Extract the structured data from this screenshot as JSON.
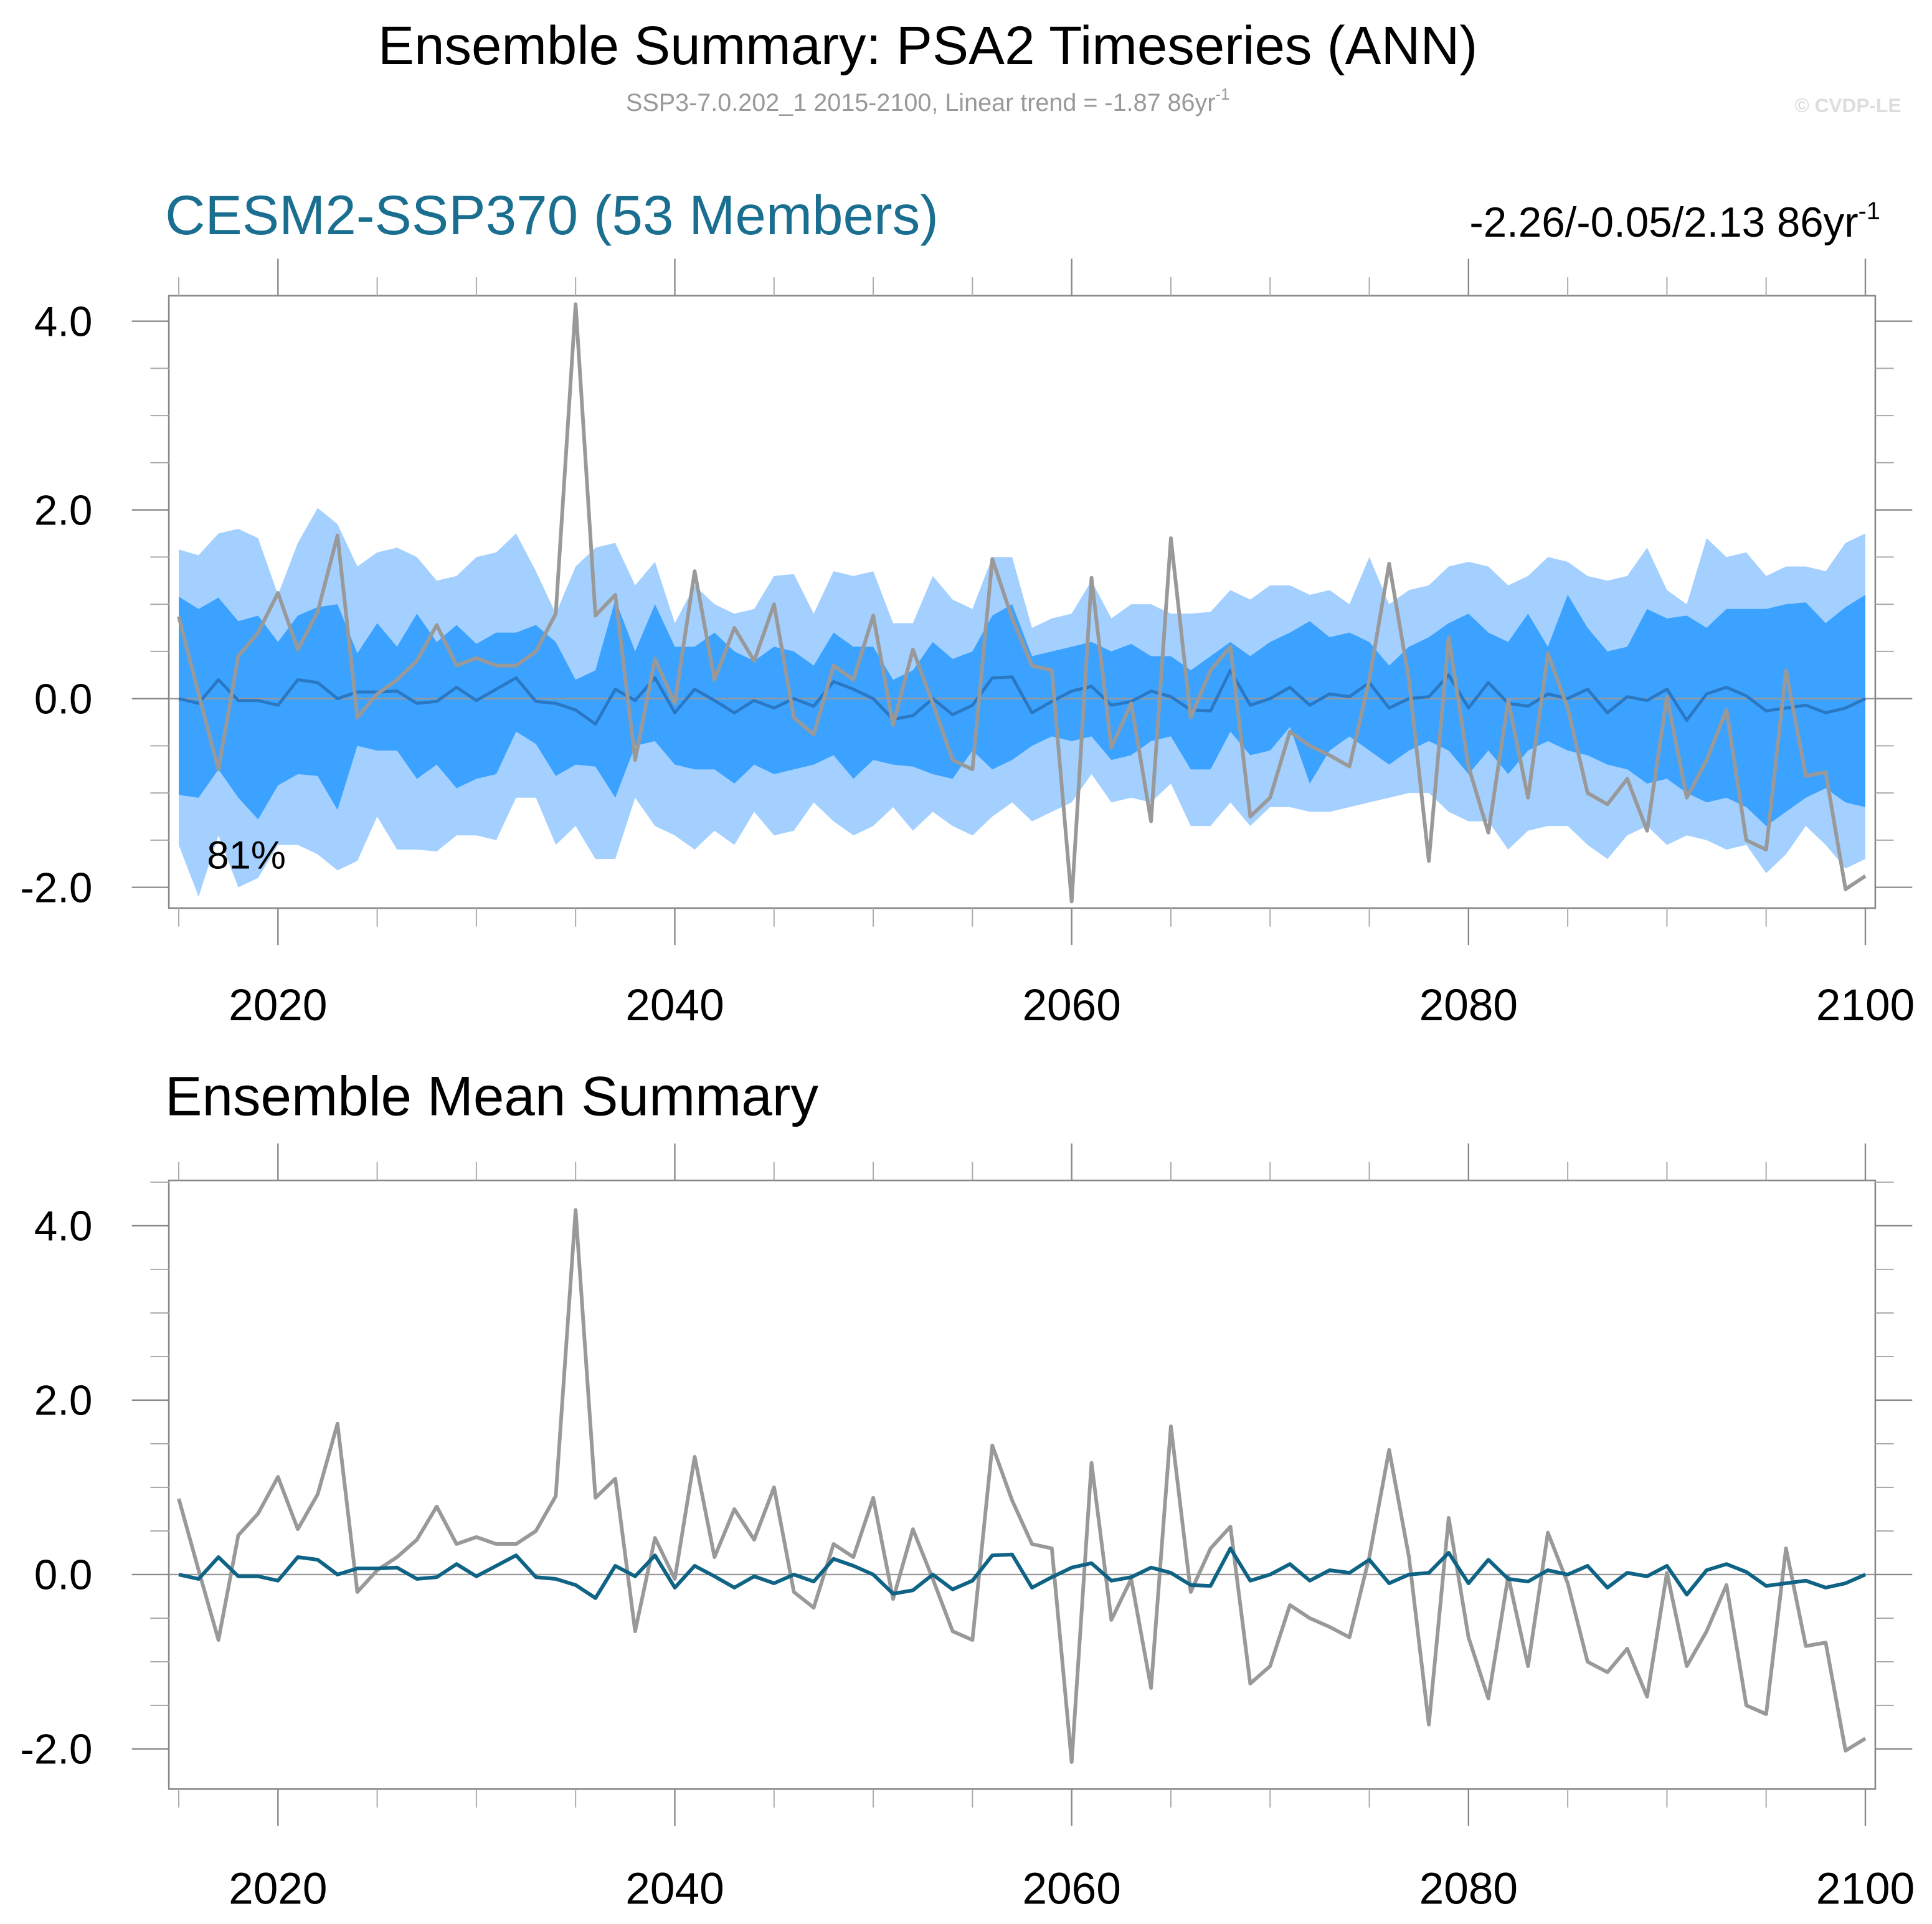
{
  "header": {
    "title": "Ensemble Summary: PSA2 Timeseries (ANN)",
    "subtitle": "SSP3-7.0.202_1 2015-2100, Linear trend = -1.87 86yr",
    "subtitle_sup": "-1",
    "watermark": "© CVDP-LE"
  },
  "chart_data": [
    {
      "type": "line",
      "title": "CESM2-SSP370 (53 Members)",
      "title_color": "#1a6f90",
      "title_right": "-2.26/-0.05/2.13 86yr",
      "title_right_sup": "-1",
      "annotation": "81%",
      "x": [
        2015,
        2016,
        2017,
        2018,
        2019,
        2020,
        2021,
        2022,
        2023,
        2024,
        2025,
        2026,
        2027,
        2028,
        2029,
        2030,
        2031,
        2032,
        2033,
        2034,
        2035,
        2036,
        2037,
        2038,
        2039,
        2040,
        2041,
        2042,
        2043,
        2044,
        2045,
        2046,
        2047,
        2048,
        2049,
        2050,
        2051,
        2052,
        2053,
        2054,
        2055,
        2056,
        2057,
        2058,
        2059,
        2060,
        2061,
        2062,
        2063,
        2064,
        2065,
        2066,
        2067,
        2068,
        2069,
        2070,
        2071,
        2072,
        2073,
        2074,
        2075,
        2076,
        2077,
        2078,
        2079,
        2080,
        2081,
        2082,
        2083,
        2084,
        2085,
        2086,
        2087,
        2088,
        2089,
        2090,
        2091,
        2092,
        2093,
        2094,
        2095,
        2096,
        2097,
        2098,
        2099,
        2100
      ],
      "xlim": [
        2014.5,
        2100.5
      ],
      "xticks": [
        2020,
        2040,
        2060,
        2080,
        2100
      ],
      "xminorticks": [
        2015,
        2025,
        2030,
        2035,
        2045,
        2050,
        2055,
        2065,
        2070,
        2075,
        2085,
        2090,
        2095
      ],
      "ylim": [
        -2.22,
        4.27
      ],
      "yticks": [
        {
          "value": -2,
          "label": "-2.0"
        },
        {
          "value": 0,
          "label": "0.0"
        },
        {
          "value": 2,
          "label": "2.0"
        },
        {
          "value": 4,
          "label": "4.0"
        }
      ],
      "yminorticks": [
        -1.5,
        -1,
        -0.5,
        0.5,
        1,
        1.5,
        2.5,
        3,
        3.5
      ],
      "reference_line": 0,
      "bands": [
        {
          "color": "#a3d0ff",
          "lower": [
            -1.55,
            -2.1,
            -1.45,
            -2.0,
            -1.9,
            -1.55,
            -1.55,
            -1.65,
            -1.82,
            -1.72,
            -1.25,
            -1.6,
            -1.6,
            -1.62,
            -1.45,
            -1.45,
            -1.5,
            -1.05,
            -1.05,
            -1.55,
            -1.35,
            -1.7,
            -1.7,
            -1.05,
            -1.35,
            -1.45,
            -1.6,
            -1.4,
            -1.55,
            -1.2,
            -1.45,
            -1.4,
            -1.1,
            -1.3,
            -1.45,
            -1.35,
            -1.15,
            -1.4,
            -1.2,
            -1.35,
            -1.45,
            -1.25,
            -1.1,
            -1.3,
            -1.2,
            -1.1,
            -0.8,
            -1.1,
            -1.05,
            -1.1,
            -0.9,
            -1.35,
            -1.35,
            -1.1,
            -1.35,
            -1.15,
            -1.15,
            -1.2,
            -1.2,
            -1.15,
            -1.1,
            -1.05,
            -1.0,
            -1.0,
            -1.2,
            -1.3,
            -1.3,
            -1.6,
            -1.4,
            -1.35,
            -1.35,
            -1.55,
            -1.7,
            -1.45,
            -1.35,
            -1.55,
            -1.45,
            -1.5,
            -1.6,
            -1.55,
            -1.85,
            -1.65,
            -1.35,
            -1.55,
            -1.8,
            -1.7
          ],
          "upper": [
            1.58,
            1.52,
            1.75,
            1.8,
            1.7,
            1.1,
            1.65,
            2.02,
            1.85,
            1.4,
            1.55,
            1.6,
            1.5,
            1.25,
            1.3,
            1.5,
            1.55,
            1.75,
            1.35,
            0.9,
            1.4,
            1.6,
            1.65,
            1.2,
            1.45,
            0.8,
            1.2,
            1.0,
            0.9,
            0.95,
            1.3,
            1.32,
            0.9,
            1.35,
            1.3,
            1.35,
            0.8,
            0.8,
            1.3,
            1.05,
            0.95,
            1.5,
            1.5,
            0.75,
            0.85,
            0.9,
            1.25,
            0.85,
            1.0,
            1.0,
            0.9,
            0.9,
            0.92,
            1.15,
            1.05,
            1.2,
            1.2,
            1.1,
            1.15,
            1.0,
            1.5,
            1.0,
            1.15,
            1.2,
            1.4,
            1.45,
            1.4,
            1.2,
            1.3,
            1.5,
            1.45,
            1.3,
            1.25,
            1.3,
            1.6,
            1.15,
            1.0,
            1.7,
            1.5,
            1.55,
            1.3,
            1.4,
            1.4,
            1.35,
            1.65,
            1.75
          ]
        },
        {
          "color": "#3ba2ff",
          "lower": [
            -1.02,
            -1.05,
            -0.75,
            -1.05,
            -1.28,
            -0.92,
            -0.8,
            -0.82,
            -1.18,
            -0.5,
            -0.55,
            -0.55,
            -0.85,
            -0.7,
            -0.95,
            -0.85,
            -0.8,
            -0.35,
            -0.48,
            -0.82,
            -0.7,
            -0.72,
            -1.05,
            -0.5,
            -0.45,
            -0.7,
            -0.75,
            -0.75,
            -0.9,
            -0.7,
            -0.8,
            -0.75,
            -0.7,
            -0.6,
            -0.85,
            -0.65,
            -0.7,
            -0.72,
            -0.8,
            -0.85,
            -0.55,
            -0.75,
            -0.65,
            -0.5,
            -0.4,
            -0.45,
            -0.4,
            -0.65,
            -0.6,
            -0.45,
            -0.4,
            -0.75,
            -0.75,
            -0.35,
            -0.6,
            -0.55,
            -0.3,
            -0.9,
            -0.55,
            -0.4,
            -0.55,
            -0.7,
            -0.55,
            -0.45,
            -0.55,
            -0.8,
            -0.55,
            -0.8,
            -0.55,
            -0.45,
            -0.55,
            -0.6,
            -0.7,
            -0.75,
            -0.9,
            -0.85,
            -1.0,
            -1.1,
            -1.05,
            -1.15,
            -1.35,
            -1.2,
            -1.05,
            -0.95,
            -1.1,
            -1.15
          ],
          "upper": [
            1.08,
            0.95,
            1.07,
            0.82,
            0.88,
            0.6,
            0.88,
            0.97,
            1.0,
            0.48,
            0.8,
            0.55,
            0.9,
            0.6,
            0.78,
            0.58,
            0.7,
            0.7,
            0.78,
            0.6,
            0.2,
            0.3,
            1.05,
            0.5,
            1.0,
            0.55,
            0.55,
            0.7,
            0.5,
            0.4,
            0.55,
            0.5,
            0.35,
            0.7,
            0.55,
            0.55,
            0.2,
            0.3,
            0.6,
            0.42,
            0.5,
            0.88,
            1.0,
            0.45,
            0.5,
            0.55,
            0.6,
            0.5,
            0.58,
            0.45,
            0.45,
            0.3,
            0.45,
            0.6,
            0.45,
            0.6,
            0.7,
            0.82,
            0.65,
            0.7,
            0.6,
            0.35,
            0.55,
            0.65,
            0.8,
            0.9,
            0.7,
            0.6,
            0.9,
            0.55,
            1.1,
            0.75,
            0.5,
            0.55,
            0.95,
            0.85,
            0.88,
            0.75,
            0.95,
            0.95,
            0.95,
            1.0,
            1.02,
            0.8,
            0.97,
            1.1
          ]
        }
      ],
      "series": [
        {
          "color": "#2a78c4",
          "width": 2.5,
          "values": [
            0,
            -0.05,
            0.2,
            -0.02,
            -0.02,
            -0.07,
            0.2,
            0.17,
            0,
            0.07,
            0.07,
            0.08,
            -0.05,
            -0.03,
            0.12,
            -0.02,
            0.1,
            0.22,
            -0.03,
            -0.05,
            -0.12,
            -0.27,
            0.1,
            -0.02,
            0.22,
            -0.15,
            0.1,
            -0.02,
            -0.15,
            -0.02,
            -0.1,
            0,
            -0.08,
            0.18,
            0.1,
            0,
            -0.22,
            -0.18,
            0,
            -0.17,
            -0.07,
            0.22,
            0.23,
            -0.15,
            -0.03,
            0.08,
            0.13,
            -0.07,
            -0.03,
            0.08,
            0.02,
            -0.12,
            -0.13,
            0.3,
            -0.07,
            0,
            0.12,
            -0.07,
            0.05,
            0.02,
            0.17,
            -0.1,
            0,
            0.02,
            0.25,
            -0.1,
            0.17,
            -0.05,
            -0.08,
            0.05,
            0,
            0.1,
            -0.15,
            0.02,
            -0.02,
            0.1,
            -0.23,
            0.05,
            0.12,
            0.03,
            -0.13,
            -0.1,
            -0.07,
            -0.15,
            -0.1,
            0
          ]
        },
        {
          "color": "#999999",
          "width": 3,
          "values": [
            0.87,
            0.05,
            -0.75,
            0.45,
            0.7,
            1.12,
            0.52,
            0.92,
            1.73,
            -0.2,
            0.05,
            0.2,
            0.4,
            0.78,
            0.35,
            0.43,
            0.35,
            0.35,
            0.5,
            0.9,
            4.18,
            0.88,
            1.1,
            -0.65,
            0.42,
            -0.05,
            1.35,
            0.2,
            0.75,
            0.4,
            1.0,
            -0.2,
            -0.38,
            0.35,
            0.2,
            0.88,
            -0.28,
            0.52,
            -0.05,
            -0.65,
            -0.75,
            1.48,
            0.85,
            0.35,
            0.3,
            -2.15,
            1.28,
            -0.52,
            -0.05,
            -1.3,
            1.7,
            -0.2,
            0.3,
            0.55,
            -1.25,
            -1.05,
            -0.35,
            -0.5,
            -0.6,
            -0.72,
            0.2,
            1.43,
            0.2,
            -1.72,
            0.65,
            -0.72,
            -1.42,
            -0.02,
            -1.05,
            0.48,
            -0.1,
            -1.0,
            -1.12,
            -0.85,
            -1.4,
            0.02,
            -1.05,
            -0.65,
            -0.12,
            -1.5,
            -1.6,
            0.3,
            -0.82,
            -0.78,
            -2.02,
            -1.88
          ]
        }
      ]
    },
    {
      "type": "line",
      "title": "Ensemble Mean Summary",
      "title_color": "#000000",
      "x": [
        2015,
        2016,
        2017,
        2018,
        2019,
        2020,
        2021,
        2022,
        2023,
        2024,
        2025,
        2026,
        2027,
        2028,
        2029,
        2030,
        2031,
        2032,
        2033,
        2034,
        2035,
        2036,
        2037,
        2038,
        2039,
        2040,
        2041,
        2042,
        2043,
        2044,
        2045,
        2046,
        2047,
        2048,
        2049,
        2050,
        2051,
        2052,
        2053,
        2054,
        2055,
        2056,
        2057,
        2058,
        2059,
        2060,
        2061,
        2062,
        2063,
        2064,
        2065,
        2066,
        2067,
        2068,
        2069,
        2070,
        2071,
        2072,
        2073,
        2074,
        2075,
        2076,
        2077,
        2078,
        2079,
        2080,
        2081,
        2082,
        2083,
        2084,
        2085,
        2086,
        2087,
        2088,
        2089,
        2090,
        2091,
        2092,
        2093,
        2094,
        2095,
        2096,
        2097,
        2098,
        2099,
        2100
      ],
      "xlim": [
        2014.5,
        2100.5
      ],
      "xticks": [
        2020,
        2040,
        2060,
        2080,
        2100
      ],
      "xminorticks": [
        2015,
        2025,
        2030,
        2035,
        2045,
        2050,
        2055,
        2065,
        2070,
        2075,
        2085,
        2090,
        2095
      ],
      "ylim": [
        -2.46,
        4.52
      ],
      "yticks": [
        {
          "value": -2,
          "label": "-2.0"
        },
        {
          "value": 0,
          "label": "0.0"
        },
        {
          "value": 2,
          "label": "2.0"
        },
        {
          "value": 4,
          "label": "4.0"
        }
      ],
      "yminorticks": [
        -1.5,
        -1,
        -0.5,
        0.5,
        1,
        1.5,
        2.5,
        3,
        3.5,
        4.5
      ],
      "reference_line": 0,
      "series": [
        {
          "color": "#999999",
          "width": 3,
          "values": [
            0.87,
            0.05,
            -0.75,
            0.45,
            0.7,
            1.12,
            0.52,
            0.92,
            1.73,
            -0.2,
            0.05,
            0.2,
            0.4,
            0.78,
            0.35,
            0.43,
            0.35,
            0.35,
            0.5,
            0.9,
            4.18,
            0.88,
            1.1,
            -0.65,
            0.42,
            -0.05,
            1.35,
            0.2,
            0.75,
            0.4,
            1.0,
            -0.2,
            -0.38,
            0.35,
            0.2,
            0.88,
            -0.28,
            0.52,
            -0.05,
            -0.65,
            -0.75,
            1.48,
            0.85,
            0.35,
            0.3,
            -2.15,
            1.28,
            -0.52,
            -0.05,
            -1.3,
            1.7,
            -0.2,
            0.3,
            0.55,
            -1.25,
            -1.05,
            -0.35,
            -0.5,
            -0.6,
            -0.72,
            0.2,
            1.43,
            0.2,
            -1.72,
            0.65,
            -0.72,
            -1.42,
            -0.02,
            -1.05,
            0.48,
            -0.1,
            -1.0,
            -1.12,
            -0.85,
            -1.4,
            0.02,
            -1.05,
            -0.65,
            -0.12,
            -1.5,
            -1.6,
            0.3,
            -0.82,
            -0.78,
            -2.02,
            -1.88
          ]
        },
        {
          "color": "#0f6384",
          "width": 3,
          "values": [
            0,
            -0.05,
            0.2,
            -0.02,
            -0.02,
            -0.07,
            0.2,
            0.17,
            0,
            0.07,
            0.07,
            0.08,
            -0.05,
            -0.03,
            0.12,
            -0.02,
            0.1,
            0.22,
            -0.03,
            -0.05,
            -0.12,
            -0.27,
            0.1,
            -0.02,
            0.22,
            -0.15,
            0.1,
            -0.02,
            -0.15,
            -0.02,
            -0.1,
            0,
            -0.08,
            0.18,
            0.1,
            0,
            -0.22,
            -0.18,
            0,
            -0.17,
            -0.07,
            0.22,
            0.23,
            -0.15,
            -0.03,
            0.08,
            0.13,
            -0.07,
            -0.03,
            0.08,
            0.02,
            -0.12,
            -0.13,
            0.3,
            -0.07,
            0,
            0.12,
            -0.07,
            0.05,
            0.02,
            0.17,
            -0.1,
            0,
            0.02,
            0.25,
            -0.1,
            0.17,
            -0.05,
            -0.08,
            0.05,
            0,
            0.1,
            -0.15,
            0.02,
            -0.02,
            0.1,
            -0.23,
            0.05,
            0.12,
            0.03,
            -0.13,
            -0.1,
            -0.07,
            -0.15,
            -0.1,
            0
          ]
        }
      ]
    }
  ]
}
